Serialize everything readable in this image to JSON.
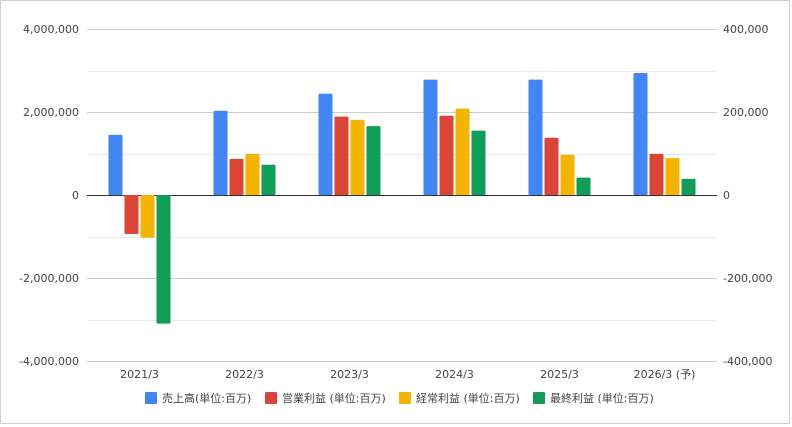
{
  "chart_data": {
    "type": "bar",
    "categories": [
      "2021/3",
      "2022/3",
      "2023/3",
      "2024/3",
      "2025/3",
      "2026/3 (予)"
    ],
    "series": [
      {
        "name": "売上高(単位:百万)",
        "color": "#4285f4",
        "values": [
          1450000,
          2030000,
          2440000,
          2780000,
          2780000,
          2940000
        ]
      },
      {
        "name": "営業利益 (単位:百万)",
        "color": "#db4437",
        "values": [
          -940000,
          870000,
          1890000,
          1910000,
          1380000,
          990000
        ]
      },
      {
        "name": "経常利益 (単位:百万)",
        "color": "#f4b400",
        "values": [
          -1030000,
          990000,
          1810000,
          2080000,
          970000,
          890000
        ]
      },
      {
        "name": "最終利益 (単位:百万)",
        "color": "#0f9d58",
        "values": [
          -3100000,
          730000,
          1660000,
          1550000,
          420000,
          390000
        ]
      }
    ],
    "ylim": [
      -4000000,
      4000000
    ],
    "y_ticks": [
      "4,000,000",
      "2,000,000",
      "0",
      "-2,000,000",
      "-4,000,000"
    ],
    "y_tick_values": [
      4000000,
      2000000,
      0,
      -2000000,
      -4000000
    ],
    "y2lim": [
      -400000,
      400000
    ],
    "y2_ticks": [
      "400,000",
      "200,000",
      "0",
      "-200,000",
      "-400,000"
    ],
    "y2_tick_values": [
      400000,
      200000,
      0,
      -200000,
      -400000
    ],
    "grid": true,
    "legend_position": "bottom"
  }
}
